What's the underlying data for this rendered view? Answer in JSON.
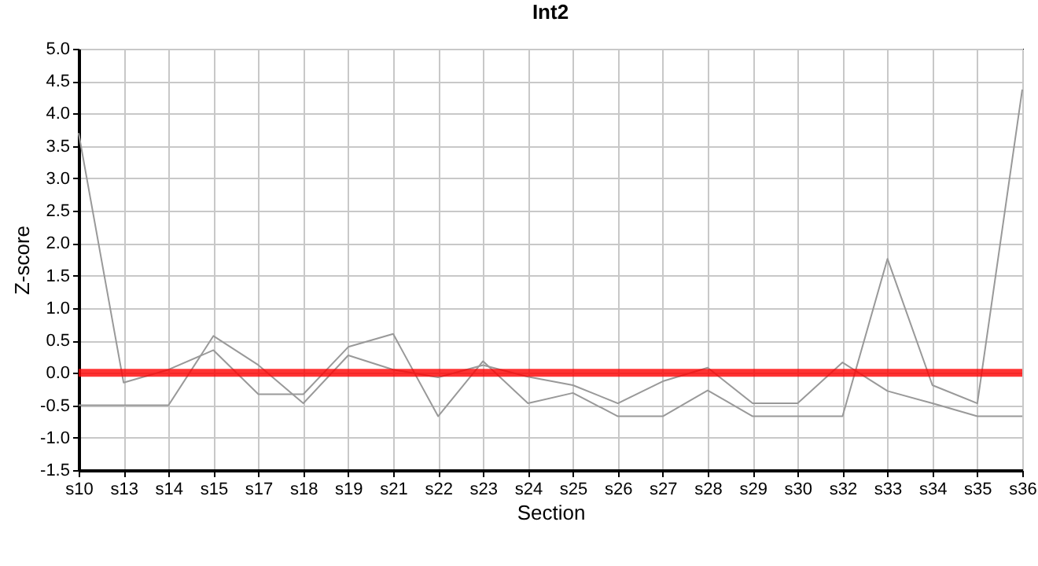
{
  "chart_data": {
    "type": "line",
    "title": "Int2",
    "xlabel": "Section",
    "ylabel": "Z-score",
    "categories": [
      "s10",
      "s13",
      "s14",
      "s15",
      "s17",
      "s18",
      "s19",
      "s21",
      "s22",
      "s23",
      "s24",
      "s25",
      "s26",
      "s27",
      "s28",
      "s29",
      "s30",
      "s32",
      "s33",
      "s34",
      "s35",
      "s36"
    ],
    "series": [
      {
        "color": "#999999",
        "values": [
          3.7,
          -0.15,
          0.05,
          0.35,
          -0.33,
          -0.33,
          0.4,
          0.6,
          -0.67,
          0.18,
          -0.47,
          -0.31,
          -0.67,
          -0.67,
          -0.27,
          -0.67,
          -0.67,
          -0.67,
          1.76,
          -0.19,
          -0.47,
          4.37
        ]
      },
      {
        "color": "#999999",
        "values": [
          -0.5,
          -0.5,
          -0.5,
          0.57,
          0.12,
          -0.47,
          0.27,
          0.05,
          -0.07,
          0.12,
          -0.06,
          -0.19,
          -0.47,
          -0.13,
          0.08,
          -0.47,
          -0.47,
          0.16,
          -0.28,
          -0.47,
          -0.67,
          -0.67
        ]
      }
    ],
    "ylim": [
      -1.5,
      5
    ],
    "yticks": [
      {
        "value": -1.5,
        "label": "-1.5"
      },
      {
        "value": -1,
        "label": "-1.0"
      },
      -0.5,
      {
        "value": 0,
        "label": "0.0"
      },
      0.5,
      {
        "value": 1,
        "label": "1.0"
      },
      1.5,
      {
        "value": 2,
        "label": "2.0"
      },
      2.5,
      {
        "value": 3,
        "label": "3.0"
      },
      3.5,
      {
        "value": 4,
        "label": "4.0"
      },
      4.5,
      {
        "value": 5,
        "label": "5.0"
      }
    ],
    "ref_lines": [
      {
        "axis": "y",
        "value": 0,
        "color": "#ff0000"
      }
    ],
    "grid": true,
    "marker": "none",
    "line_style": "solid",
    "legend": false
  }
}
